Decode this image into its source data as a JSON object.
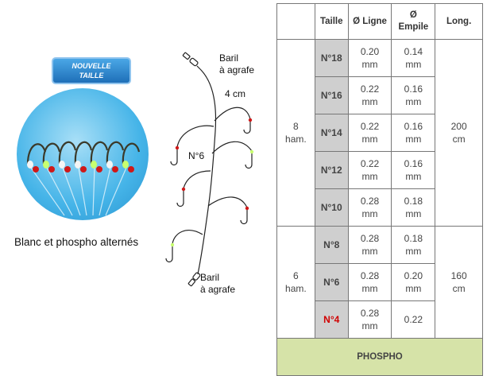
{
  "badge": {
    "line1": "NOUVELLE",
    "line2": "TAILLE"
  },
  "caption": "Blanc et phospho alternés",
  "diagram": {
    "top_label_1": "Baril",
    "top_label_2": "à agrafe",
    "spacing": "4 cm",
    "hook_size": "N°6",
    "bottom_label_1": "Baril",
    "bottom_label_2": "à agrafe"
  },
  "table": {
    "headers": {
      "blank": "",
      "taille": "Taille",
      "ligne": "Ø Ligne",
      "empile_1": "Ø",
      "empile_2": "Empile",
      "long": "Long."
    },
    "group1": {
      "ham_1": "8",
      "ham_2": "ham.",
      "long": "200",
      "long_unit": "cm"
    },
    "group2": {
      "ham_1": "6",
      "ham_2": "ham.",
      "long": "160",
      "long_unit": "cm"
    },
    "rows": [
      {
        "size": "N°18",
        "ligne": "0.20",
        "ligne_unit": "mm",
        "empile": "0.14",
        "empile_unit": "mm"
      },
      {
        "size": "N°16",
        "ligne": "0.22",
        "ligne_unit": "mm",
        "empile": "0.16",
        "empile_unit": "mm"
      },
      {
        "size": "N°14",
        "ligne": "0.22",
        "ligne_unit": "mm",
        "empile": "0.16",
        "empile_unit": "mm"
      },
      {
        "size": "N°12",
        "ligne": "0.22",
        "ligne_unit": "mm",
        "empile": "0.16",
        "empile_unit": "mm"
      },
      {
        "size": "N°10",
        "ligne": "0.28",
        "ligne_unit": "mm",
        "empile": "0.18",
        "empile_unit": "mm"
      },
      {
        "size": "N°8",
        "ligne": "0.28",
        "ligne_unit": "mm",
        "empile": "0.18",
        "empile_unit": "mm"
      },
      {
        "size": "N°6",
        "ligne": "0.28",
        "ligne_unit": "mm",
        "empile": "0.20",
        "empile_unit": "mm"
      },
      {
        "size": "N°4",
        "ligne": "0.28",
        "ligne_unit": "mm",
        "empile": "0.22",
        "empile_unit": ""
      }
    ],
    "footer": "PHOSPHO"
  },
  "colors": {
    "highlight_red": "#d00000",
    "size_cell_bg": "#cfcfcf",
    "footer_bg": "#d6e3a8",
    "badge_blue": "#1f6fb8"
  }
}
